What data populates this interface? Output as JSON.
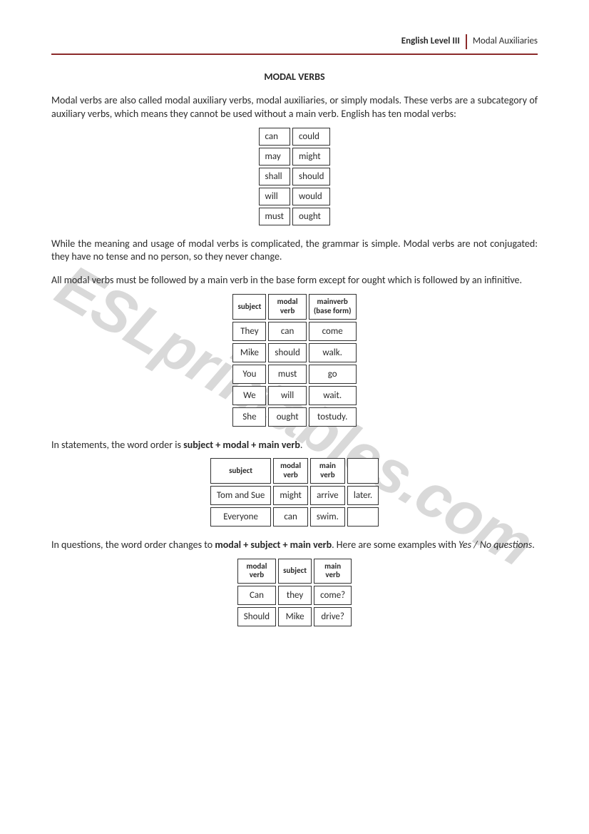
{
  "header": {
    "left": "English Level III",
    "right": "Modal Auxiliaries"
  },
  "title": "MODAL VERBS",
  "watermark": "ESLprintables.com",
  "para1": "Modal verbs are also called modal auxiliary verbs, modal auxiliaries, or simply modals. These verbs are a subcategory of auxiliary verbs, which means they cannot be used without a main verb. English has ten modal verbs:",
  "table1": {
    "rows": [
      [
        "can",
        "could"
      ],
      [
        "may",
        "might"
      ],
      [
        "shall",
        "should"
      ],
      [
        "will",
        "would"
      ],
      [
        "must",
        "ought"
      ]
    ]
  },
  "para2": "While the meaning and usage of modal verbs is complicated, the grammar is simple. Modal verbs are not conjugated: they have no tense and no person, so they never change.",
  "para3": "All modal verbs must be followed by a main verb in the base form except for ought which is followed by an infinitive.",
  "table2": {
    "headers": [
      "subject",
      "modal\nverb",
      "mainverb\n(base form)"
    ],
    "rows": [
      [
        "They",
        "can",
        "come"
      ],
      [
        "Mike",
        "should",
        "walk."
      ],
      [
        "You",
        "must",
        "go"
      ],
      [
        "We",
        "will",
        "wait."
      ],
      [
        "She",
        "ought",
        "tostudy."
      ]
    ]
  },
  "para4_pre": "In statements, the word order is ",
  "para4_bold": "subject + modal + main verb",
  "para4_post": ".",
  "table3": {
    "headers": [
      "subject",
      "modal\nverb",
      "main\nverb",
      ""
    ],
    "rows": [
      [
        "Tom and Sue",
        "might",
        "arrive",
        "later."
      ],
      [
        "Everyone",
        "can",
        "swim.",
        ""
      ]
    ]
  },
  "para5_pre": "In questions, the word order changes to ",
  "para5_bold": "modal + subject + main verb",
  "para5_mid": ". Here are some examples with ",
  "para5_italic": "Yes / No questions",
  "para5_post": ".",
  "table4": {
    "headers": [
      "modal\nverb",
      "subject",
      "main\nverb"
    ],
    "rows": [
      [
        "Can",
        "they",
        "come?"
      ],
      [
        "Should",
        "Mike",
        "drive?"
      ]
    ]
  }
}
